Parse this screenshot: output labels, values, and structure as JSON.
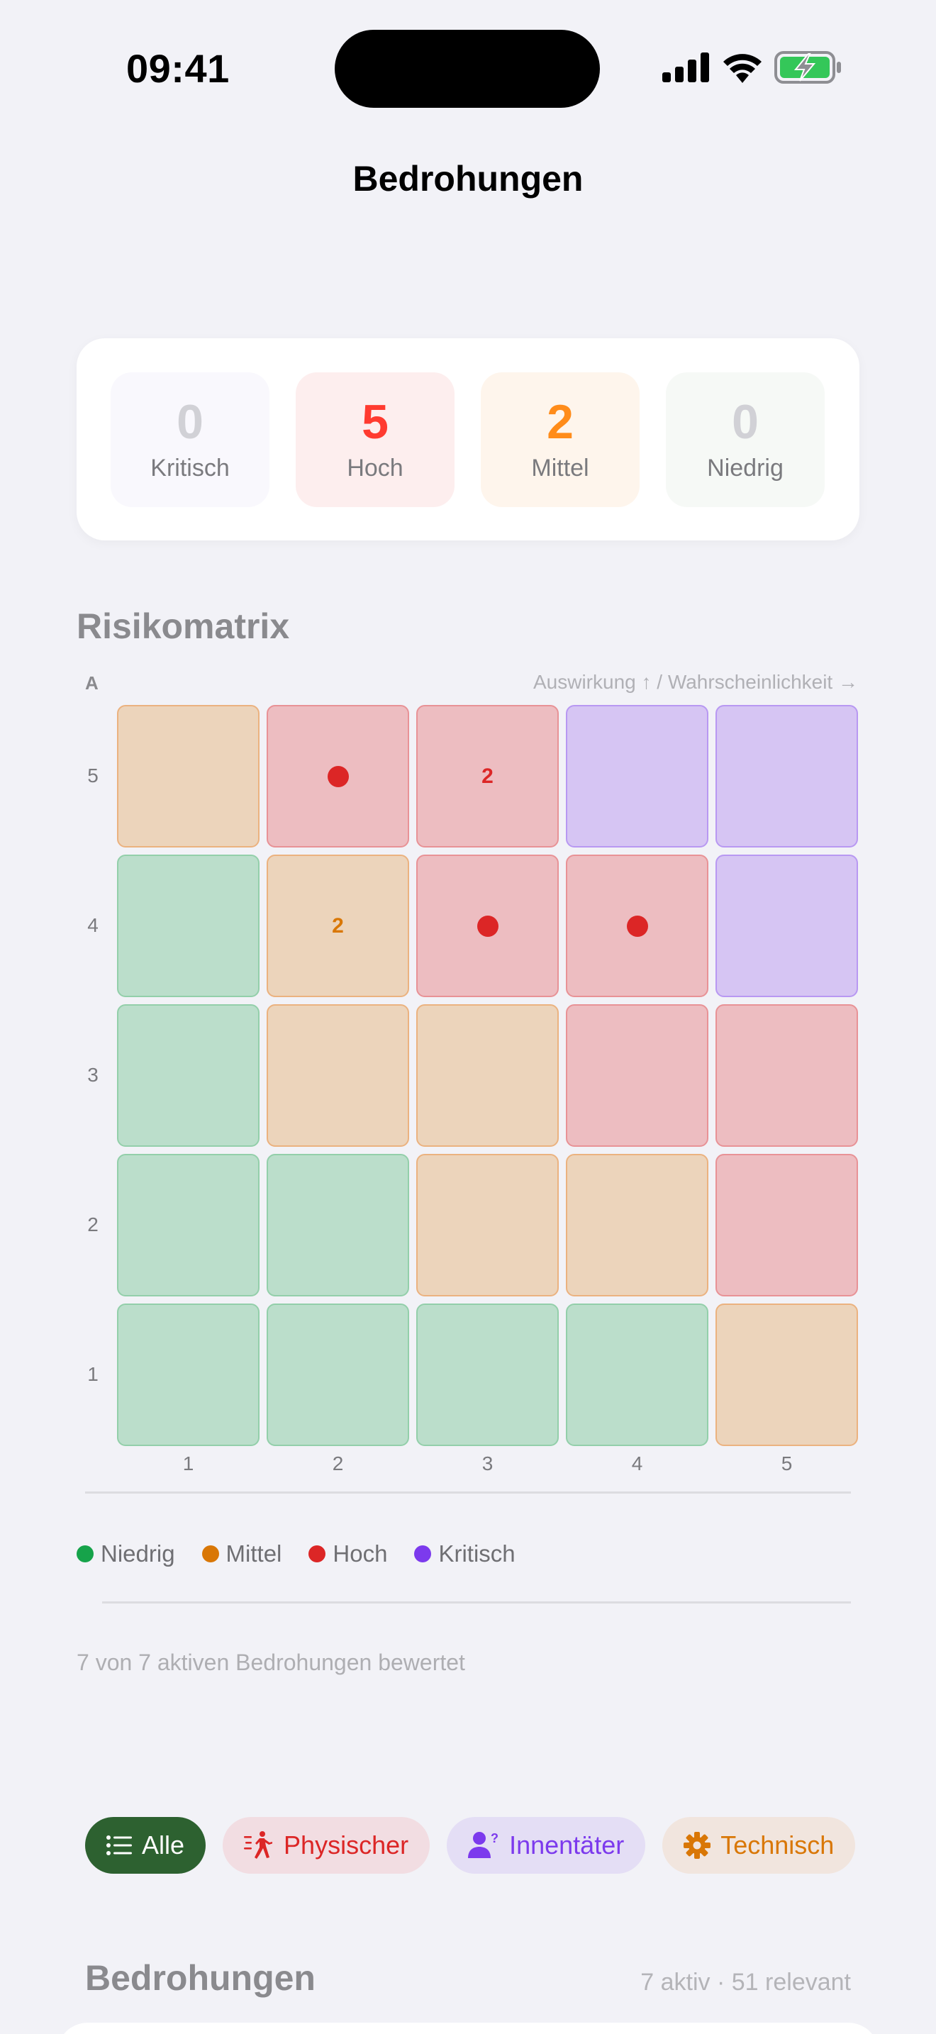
{
  "status_bar": {
    "time": "09:41",
    "icons": [
      "cellular-signal-icon",
      "wifi-icon",
      "battery-charging-icon"
    ],
    "battery_color": "#34c759"
  },
  "nav": {
    "title": "Bedrohungen"
  },
  "summary": {
    "tiles": [
      {
        "label": "Kritisch",
        "count": "0",
        "number_color": "#d1d1d6",
        "bg": "#f9f8fd"
      },
      {
        "label": "Hoch",
        "count": "5",
        "number_color": "#ff3b30",
        "bg": "#fdeeee"
      },
      {
        "label": "Mittel",
        "count": "2",
        "number_color": "#ff8c1a",
        "bg": "#fef5ec"
      },
      {
        "label": "Niedrig",
        "count": "0",
        "number_color": "#d1d1d6",
        "bg": "#f6f9f6"
      }
    ]
  },
  "risk_matrix": {
    "title": "Risikomatrix",
    "y_axis_short": "A",
    "axis_hint": "Auswirkung ↑ / Wahrscheinlichkeit →",
    "row_labels": [
      "5",
      "4",
      "3",
      "2",
      "1"
    ],
    "col_labels": [
      "1",
      "2",
      "3",
      "4",
      "5"
    ],
    "rows": [
      [
        {
          "level": "mittel",
          "marker": ""
        },
        {
          "level": "hoch",
          "marker": "dot"
        },
        {
          "level": "hoch",
          "marker": "2"
        },
        {
          "level": "kritisch",
          "marker": ""
        },
        {
          "level": "kritisch",
          "marker": ""
        }
      ],
      [
        {
          "level": "niedrig",
          "marker": ""
        },
        {
          "level": "mittel",
          "marker": "2"
        },
        {
          "level": "hoch",
          "marker": "dot"
        },
        {
          "level": "hoch",
          "marker": "dot"
        },
        {
          "level": "kritisch",
          "marker": ""
        }
      ],
      [
        {
          "level": "niedrig",
          "marker": ""
        },
        {
          "level": "mittel",
          "marker": ""
        },
        {
          "level": "mittel",
          "marker": ""
        },
        {
          "level": "hoch",
          "marker": ""
        },
        {
          "level": "hoch",
          "marker": ""
        }
      ],
      [
        {
          "level": "niedrig",
          "marker": ""
        },
        {
          "level": "niedrig",
          "marker": ""
        },
        {
          "level": "mittel",
          "marker": ""
        },
        {
          "level": "mittel",
          "marker": ""
        },
        {
          "level": "hoch",
          "marker": ""
        }
      ],
      [
        {
          "level": "niedrig",
          "marker": ""
        },
        {
          "level": "niedrig",
          "marker": ""
        },
        {
          "level": "niedrig",
          "marker": ""
        },
        {
          "level": "niedrig",
          "marker": ""
        },
        {
          "level": "mittel",
          "marker": ""
        }
      ]
    ],
    "count_colors": {
      "mittel": "#d97706",
      "hoch": "#dc2626"
    },
    "legend": [
      {
        "label": "Niedrig",
        "color": "#16a34a"
      },
      {
        "label": "Mittel",
        "color": "#d97706"
      },
      {
        "label": "Hoch",
        "color": "#dc2626"
      },
      {
        "label": "Kritisch",
        "color": "#7c3aed"
      }
    ],
    "footer": "7 von 7 aktiven Bedrohungen bewertet"
  },
  "chart_data": {
    "type": "heatmap",
    "title": "Risikomatrix",
    "xlabel": "Wahrscheinlichkeit",
    "ylabel": "Auswirkung",
    "x": [
      1,
      2,
      3,
      4,
      5
    ],
    "y": [
      5,
      4,
      3,
      2,
      1
    ],
    "levels": [
      [
        "Mittel",
        "Hoch",
        "Hoch",
        "Kritisch",
        "Kritisch"
      ],
      [
        "Niedrig",
        "Mittel",
        "Hoch",
        "Hoch",
        "Kritisch"
      ],
      [
        "Niedrig",
        "Mittel",
        "Mittel",
        "Hoch",
        "Hoch"
      ],
      [
        "Niedrig",
        "Niedrig",
        "Mittel",
        "Mittel",
        "Hoch"
      ],
      [
        "Niedrig",
        "Niedrig",
        "Niedrig",
        "Niedrig",
        "Mittel"
      ]
    ],
    "threat_counts": [
      [
        0,
        1,
        2,
        0,
        0
      ],
      [
        0,
        2,
        1,
        1,
        0
      ],
      [
        0,
        0,
        0,
        0,
        0
      ],
      [
        0,
        0,
        0,
        0,
        0
      ],
      [
        0,
        0,
        0,
        0,
        0
      ]
    ],
    "legend": [
      "Niedrig",
      "Mittel",
      "Hoch",
      "Kritisch"
    ],
    "total_assessed": 7
  },
  "filters": {
    "chips": [
      {
        "label": "Alle",
        "icon": "list-icon",
        "selected": true,
        "bg": "#2d6130",
        "fg": "#ffffff"
      },
      {
        "label": "Physischer",
        "icon": "running-person-icon",
        "selected": false,
        "bg": "#f2dde2",
        "fg": "#dc2626"
      },
      {
        "label": "Innentäter",
        "icon": "person-question-icon",
        "selected": false,
        "bg": "#e4def5",
        "fg": "#7c3aed"
      },
      {
        "label": "Technisch",
        "icon": "gear-icon",
        "selected": false,
        "bg": "#f1e5de",
        "fg": "#d97706"
      }
    ]
  },
  "threat_list": {
    "title": "Bedrohungen",
    "meta": "7 aktiv · 51 relevant"
  }
}
